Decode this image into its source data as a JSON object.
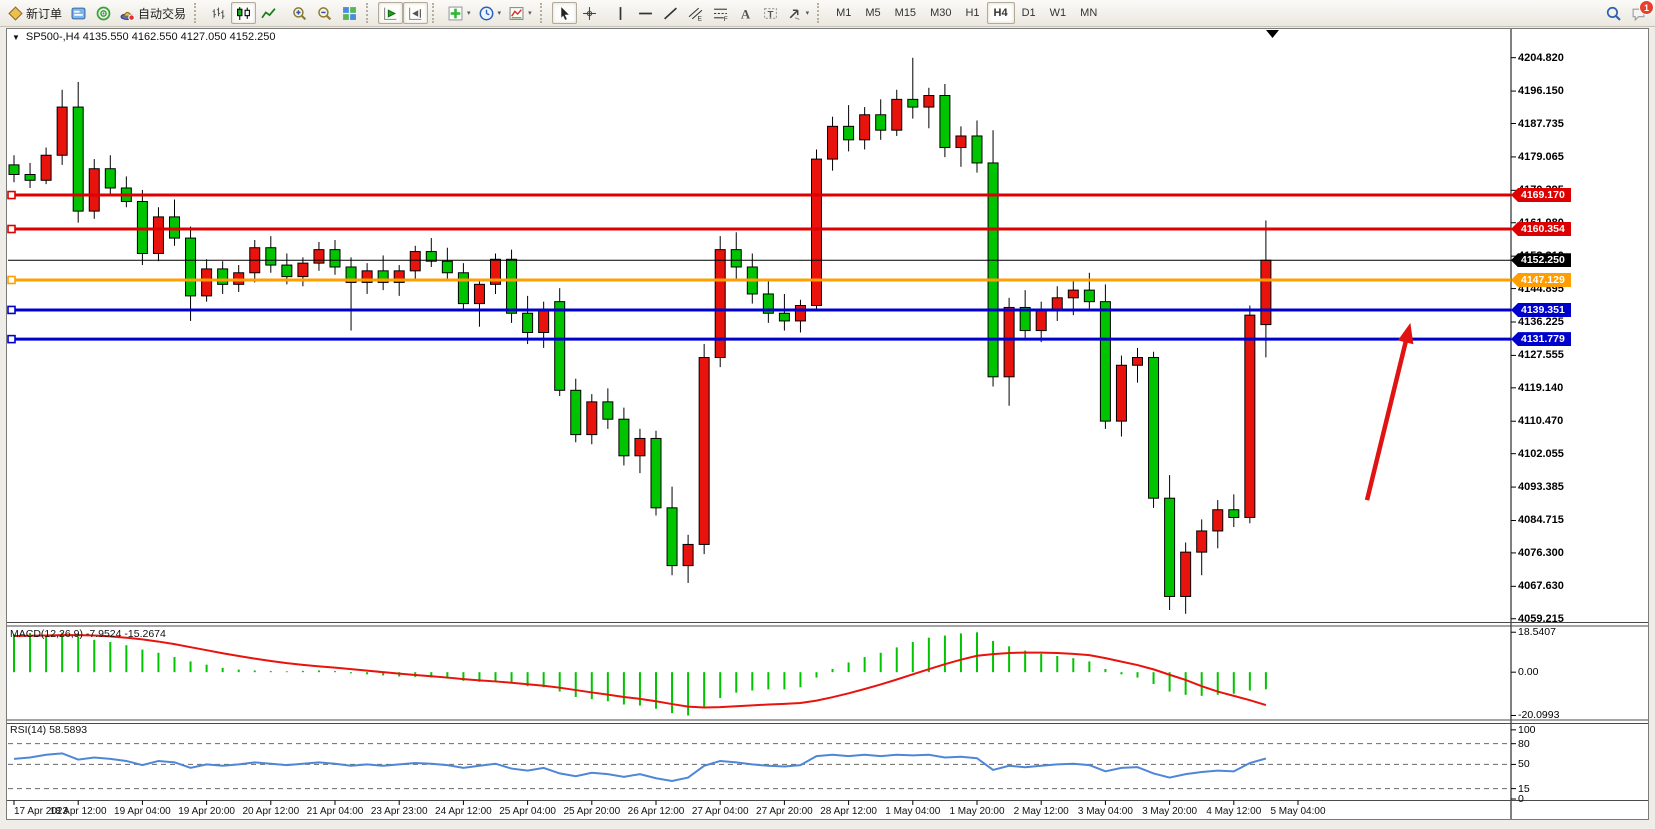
{
  "toolbar": {
    "new_order_label": "新订单",
    "auto_trading_label": "自动交易",
    "timeframes": [
      "M1",
      "M5",
      "M15",
      "M30",
      "H1",
      "H4",
      "D1",
      "W1",
      "MN"
    ],
    "active_timeframe": "H4",
    "chat_badge": "1",
    "items": [
      {
        "name": "new-order",
        "icon": "new-order-icon",
        "label": "新订单"
      },
      {
        "name": "charts-window",
        "icon": "terminal-icon"
      },
      {
        "name": "signals",
        "icon": "signals-icon"
      },
      {
        "name": "auto-trading",
        "icon": "autotrade-icon",
        "label": "自动交易"
      },
      {
        "type": "sep"
      },
      {
        "name": "bar-chart-mode",
        "icon": "bar-chart-icon"
      },
      {
        "name": "candle-chart-mode",
        "icon": "candle-chart-icon",
        "active": true
      },
      {
        "name": "line-chart-mode",
        "icon": "line-chart-icon"
      },
      {
        "type": "gap"
      },
      {
        "name": "zoom-in",
        "icon": "zoom-in-icon"
      },
      {
        "name": "zoom-out",
        "icon": "zoom-out-icon"
      },
      {
        "name": "tile-windows",
        "icon": "tile-windows-icon"
      },
      {
        "type": "sep"
      },
      {
        "name": "auto-scroll",
        "icon": "autoscroll-icon",
        "active": true
      },
      {
        "name": "chart-shift",
        "icon": "shift-icon",
        "active": true
      },
      {
        "type": "sep"
      },
      {
        "name": "indicators",
        "icon": "indicators-icon",
        "dropdown": true
      },
      {
        "name": "periods",
        "icon": "clock-icon",
        "dropdown": true
      },
      {
        "name": "templates",
        "icon": "template-icon",
        "dropdown": true
      },
      {
        "type": "sep"
      },
      {
        "name": "cursor",
        "icon": "cursor-icon",
        "active": true
      },
      {
        "name": "crosshair",
        "icon": "crosshair-icon"
      },
      {
        "type": "gap"
      },
      {
        "name": "vertical-line",
        "icon": "vline-icon"
      },
      {
        "name": "horizontal-line",
        "icon": "hline-icon"
      },
      {
        "name": "trendline",
        "icon": "trendline-icon"
      },
      {
        "name": "equidistant-channel",
        "icon": "channel-icon"
      },
      {
        "name": "fibonacci",
        "icon": "fibonacci-icon"
      },
      {
        "name": "text",
        "icon": "text-icon"
      },
      {
        "name": "text-label",
        "icon": "label-icon"
      },
      {
        "name": "arrows",
        "icon": "arrows-icon",
        "dropdown": true
      },
      {
        "type": "sep"
      },
      {
        "type": "timeframes"
      },
      {
        "type": "spacer"
      },
      {
        "name": "search",
        "icon": "search-icon"
      },
      {
        "name": "chat",
        "icon": "chat-icon",
        "badge": "1"
      }
    ]
  },
  "chart": {
    "header": "SP500-,H4  4135.550 4162.550 4127.050 4152.250",
    "symbol": "SP500-",
    "timeframe": "H4",
    "ohlc": {
      "open": "4135.550",
      "high": "4162.550",
      "low": "4127.050",
      "close": "4152.250"
    }
  },
  "macd": {
    "label": "MACD(12,26,9) -7.9524 -15.2674",
    "axis": [
      "18.5407",
      "0.00",
      "-20.0993"
    ]
  },
  "rsi": {
    "label": "RSI(14) 58.5893",
    "axis": [
      "100",
      "80",
      "50",
      "15",
      "0"
    ]
  },
  "price_axis_ticks": [
    "4204.820",
    "4196.150",
    "4187.735",
    "4179.065",
    "4170.395",
    "4161.980",
    "4153.310",
    "4144.895",
    "4136.225",
    "4127.555",
    "4119.140",
    "4110.470",
    "4102.055",
    "4093.385",
    "4084.715",
    "4076.300",
    "4067.630",
    "4059.215"
  ],
  "price_lines": [
    {
      "label": "4169.170",
      "price": 4169.17,
      "color": "#dd0000"
    },
    {
      "label": "4160.354",
      "price": 4160.354,
      "color": "#dd0000"
    },
    {
      "label": "4147.129",
      "price": 4147.129,
      "color": "#ff9e00"
    },
    {
      "label": "4139.351",
      "price": 4139.351,
      "color": "#0000cc"
    },
    {
      "label": "4131.779",
      "price": 4131.779,
      "color": "#0000cc"
    }
  ],
  "current_price": {
    "label": "4152.250",
    "price": 4152.25,
    "color": "#000000"
  },
  "time_axis": [
    "17 Apr 2023",
    "18 Apr 12:00",
    "19 Apr 04:00",
    "19 Apr 20:00",
    "20 Apr 12:00",
    "21 Apr 04:00",
    "23 Apr 23:00",
    "24 Apr 12:00",
    "25 Apr 04:00",
    "25 Apr 20:00",
    "26 Apr 12:00",
    "27 Apr 04:00",
    "27 Apr 20:00",
    "28 Apr 12:00",
    "1 May 04:00",
    "1 May 20:00",
    "2 May 12:00",
    "3 May 04:00",
    "3 May 20:00",
    "4 May 12:00",
    "5 May 04:00"
  ],
  "chart_data": {
    "type": "candlestick",
    "title": "SP500-,H4",
    "symbol": "SP500-",
    "timeframe": "H4",
    "bars_per_label": 4,
    "x_labels": [
      "17 Apr 2023",
      "18 Apr 12:00",
      "19 Apr 04:00",
      "19 Apr 20:00",
      "20 Apr 12:00",
      "21 Apr 04:00",
      "23 Apr 23:00",
      "24 Apr 12:00",
      "25 Apr 04:00",
      "25 Apr 20:00",
      "26 Apr 12:00",
      "27 Apr 04:00",
      "27 Apr 20:00",
      "28 Apr 12:00",
      "1 May 04:00",
      "1 May 20:00",
      "2 May 12:00",
      "3 May 04:00",
      "3 May 20:00",
      "4 May 12:00",
      "5 May 04:00"
    ],
    "up_color": "#e8130c",
    "down_color": "#00c400",
    "ylim": [
      4058.5,
      4212.0
    ],
    "y_ticks": [
      4204.82,
      4196.15,
      4187.735,
      4179.065,
      4170.395,
      4161.98,
      4153.31,
      4144.895,
      4136.225,
      4127.555,
      4119.14,
      4110.47,
      4102.055,
      4093.385,
      4084.715,
      4076.3,
      4067.63,
      4059.215
    ],
    "candles": [
      [
        4177.0,
        4179.5,
        4172.5,
        4174.5
      ],
      [
        4174.5,
        4177.5,
        4171.0,
        4173.0
      ],
      [
        4173.0,
        4181.5,
        4172.0,
        4179.5
      ],
      [
        4179.5,
        4196.5,
        4177.0,
        4192.0
      ],
      [
        4192.0,
        4198.5,
        4162.0,
        4165.0
      ],
      [
        4165.0,
        4178.5,
        4163.0,
        4176.0
      ],
      [
        4176.0,
        4179.5,
        4169.0,
        4171.0
      ],
      [
        4171.0,
        4174.0,
        4166.0,
        4167.5
      ],
      [
        4167.5,
        4170.5,
        4151.0,
        4154.0
      ],
      [
        4154.0,
        4166.0,
        4152.0,
        4163.5
      ],
      [
        4163.5,
        4168.0,
        4156.0,
        4158.0
      ],
      [
        4158.0,
        4161.0,
        4136.5,
        4143.0
      ],
      [
        4143.0,
        4152.5,
        4141.5,
        4150.0
      ],
      [
        4150.0,
        4152.0,
        4143.5,
        4146.0
      ],
      [
        4146.0,
        4151.0,
        4144.0,
        4149.0
      ],
      [
        4149.0,
        4157.5,
        4146.5,
        4155.5
      ],
      [
        4155.5,
        4158.5,
        4149.0,
        4151.0
      ],
      [
        4151.0,
        4154.0,
        4146.0,
        4148.0
      ],
      [
        4148.0,
        4153.0,
        4145.5,
        4151.5
      ],
      [
        4151.5,
        4157.0,
        4149.5,
        4155.0
      ],
      [
        4155.0,
        4157.5,
        4148.5,
        4150.5
      ],
      [
        4150.5,
        4153.0,
        4134.0,
        4146.5
      ],
      [
        4146.5,
        4151.5,
        4143.5,
        4149.5
      ],
      [
        4149.5,
        4153.5,
        4144.5,
        4146.5
      ],
      [
        4146.5,
        4151.0,
        4143.0,
        4149.5
      ],
      [
        4149.5,
        4156.0,
        4147.0,
        4154.5
      ],
      [
        4154.5,
        4158.0,
        4150.5,
        4152.0
      ],
      [
        4152.0,
        4155.5,
        4147.0,
        4149.0
      ],
      [
        4149.0,
        4151.5,
        4139.0,
        4141.0
      ],
      [
        4141.0,
        4147.5,
        4135.0,
        4146.0
      ],
      [
        4146.0,
        4154.0,
        4143.5,
        4152.5
      ],
      [
        4152.5,
        4155.0,
        4136.0,
        4138.5
      ],
      [
        4138.5,
        4143.0,
        4130.5,
        4133.5
      ],
      [
        4133.5,
        4141.5,
        4129.5,
        4139.5
      ],
      [
        4141.5,
        4145.0,
        4117.0,
        4118.5
      ],
      [
        4118.5,
        4121.5,
        4105.0,
        4107.0
      ],
      [
        4107.0,
        4117.5,
        4104.5,
        4115.5
      ],
      [
        4115.5,
        4119.0,
        4108.5,
        4111.0
      ],
      [
        4111.0,
        4114.0,
        4099.0,
        4101.5
      ],
      [
        4101.5,
        4108.5,
        4097.0,
        4106.0
      ],
      [
        4106.0,
        4108.0,
        4086.0,
        4088.0
      ],
      [
        4088.0,
        4093.5,
        4070.5,
        4073.0
      ],
      [
        4073.0,
        4081.0,
        4068.5,
        4078.5
      ],
      [
        4078.5,
        4130.5,
        4076.0,
        4127.0
      ],
      [
        4127.0,
        4158.5,
        4124.5,
        4155.0
      ],
      [
        4155.0,
        4159.5,
        4147.5,
        4150.5
      ],
      [
        4150.5,
        4154.0,
        4141.0,
        4143.5
      ],
      [
        4143.5,
        4147.0,
        4136.0,
        4138.5
      ],
      [
        4138.5,
        4143.5,
        4134.0,
        4136.5
      ],
      [
        4136.5,
        4142.0,
        4133.5,
        4140.5
      ],
      [
        4140.5,
        4181.0,
        4139.0,
        4178.5
      ],
      [
        4178.5,
        4189.5,
        4175.5,
        4187.0
      ],
      [
        4187.0,
        4192.5,
        4180.5,
        4183.5
      ],
      [
        4183.5,
        4192.0,
        4181.0,
        4190.0
      ],
      [
        4190.0,
        4194.0,
        4183.5,
        4186.0
      ],
      [
        4186.0,
        4196.5,
        4184.5,
        4194.0
      ],
      [
        4194.0,
        4204.8,
        4189.0,
        4192.0
      ],
      [
        4192.0,
        4197.0,
        4186.5,
        4195.0
      ],
      [
        4195.0,
        4198.0,
        4179.0,
        4181.5
      ],
      [
        4181.5,
        4187.0,
        4176.5,
        4184.5
      ],
      [
        4184.5,
        4188.5,
        4175.0,
        4177.5
      ],
      [
        4177.5,
        4186.0,
        4119.5,
        4122.0
      ],
      [
        4122.0,
        4142.5,
        4114.5,
        4140.0
      ],
      [
        4140.0,
        4144.5,
        4131.5,
        4134.0
      ],
      [
        4134.0,
        4141.5,
        4131.0,
        4139.5
      ],
      [
        4139.5,
        4145.5,
        4136.5,
        4142.5
      ],
      [
        4142.5,
        4147.0,
        4138.0,
        4144.5
      ],
      [
        4144.5,
        4149.0,
        4139.5,
        4141.5
      ],
      [
        4141.5,
        4146.0,
        4108.5,
        4110.5
      ],
      [
        4110.5,
        4127.5,
        4106.5,
        4125.0
      ],
      [
        4125.0,
        4129.5,
        4120.5,
        4127.0
      ],
      [
        4127.0,
        4128.5,
        4088.0,
        4090.5
      ],
      [
        4090.5,
        4096.5,
        4061.5,
        4065.0
      ],
      [
        4065.0,
        4079.0,
        4060.5,
        4076.5
      ],
      [
        4076.5,
        4085.0,
        4070.5,
        4082.0
      ],
      [
        4082.0,
        4090.0,
        4077.5,
        4087.5
      ],
      [
        4087.5,
        4091.5,
        4083.0,
        4085.5
      ],
      [
        4085.5,
        4140.5,
        4084.0,
        4138.0
      ],
      [
        4135.55,
        4162.55,
        4127.05,
        4152.25
      ]
    ],
    "hlines": [
      {
        "label": "4169.170",
        "price": 4169.17,
        "color": "#dd0000",
        "width": 3
      },
      {
        "label": "4160.354",
        "price": 4160.354,
        "color": "#dd0000",
        "width": 3
      },
      {
        "label": "4152.250",
        "price": 4152.25,
        "color": "#000000",
        "width": 1
      },
      {
        "label": "4147.129",
        "price": 4147.129,
        "color": "#ff9e00",
        "width": 3
      },
      {
        "label": "4139.351",
        "price": 4139.351,
        "color": "#0000cc",
        "width": 3
      },
      {
        "label": "4131.779",
        "price": 4131.779,
        "color": "#0000cc",
        "width": 3
      }
    ],
    "indicators": [
      {
        "name": "MACD",
        "params": "12,26,9",
        "main_value": -7.9524,
        "signal_value": -15.2674,
        "ylim": [
          -21.5,
          20.5
        ],
        "y_ticks": [
          18.5407,
          0.0,
          -20.0993
        ],
        "histogram_color": "#00c400",
        "signal_color": "#e8130c",
        "histogram": [
          17.5,
          18.2,
          17.0,
          18.4,
          16.5,
          15.0,
          14.0,
          12.5,
          10.5,
          9.0,
          7.0,
          5.0,
          3.5,
          2.0,
          1.2,
          0.8,
          0.5,
          0.4,
          0.6,
          0.8,
          0.5,
          -0.5,
          -1.0,
          -1.5,
          -2.0,
          -2.2,
          -2.5,
          -3.0,
          -4.0,
          -4.5,
          -4.0,
          -5.0,
          -6.5,
          -7.0,
          -9.0,
          -11.5,
          -12.5,
          -13.5,
          -15.0,
          -15.5,
          -17.0,
          -19.0,
          -20.1,
          -16.5,
          -12.0,
          -9.5,
          -8.5,
          -8.0,
          -8.0,
          -7.0,
          -2.5,
          1.5,
          4.5,
          7.0,
          9.0,
          11.5,
          14.0,
          16.0,
          17.0,
          18.0,
          18.5,
          14.5,
          12.0,
          10.0,
          8.5,
          7.5,
          6.5,
          5.0,
          1.5,
          -1.0,
          -2.5,
          -5.5,
          -9.0,
          -10.5,
          -11.0,
          -10.5,
          -10.0,
          -8.5,
          -7.95
        ],
        "signal": [
          16.8,
          16.9,
          17.0,
          17.2,
          17.2,
          17.0,
          16.6,
          16.0,
          15.2,
          14.2,
          13.0,
          11.6,
          10.2,
          8.8,
          7.5,
          6.3,
          5.2,
          4.2,
          3.4,
          2.7,
          2.1,
          1.4,
          0.7,
          0.0,
          -0.7,
          -1.3,
          -1.9,
          -2.5,
          -3.2,
          -3.8,
          -4.3,
          -4.9,
          -5.6,
          -6.3,
          -7.2,
          -8.3,
          -9.4,
          -10.4,
          -11.5,
          -12.4,
          -13.5,
          -14.8,
          -16.0,
          -16.4,
          -16.2,
          -15.8,
          -15.4,
          -15.0,
          -14.7,
          -14.3,
          -13.2,
          -11.6,
          -9.8,
          -7.8,
          -5.7,
          -3.4,
          -1.0,
          1.4,
          3.7,
          5.8,
          7.6,
          8.4,
          8.9,
          9.1,
          9.1,
          8.9,
          8.5,
          7.9,
          6.5,
          4.9,
          3.3,
          1.3,
          -1.2,
          -3.6,
          -6.5,
          -9.0,
          -11.0,
          -13.0,
          -15.27
        ]
      },
      {
        "name": "RSI",
        "params": "14",
        "value": 58.5893,
        "ylim": [
          0,
          107
        ],
        "levels": [
          80,
          50,
          15
        ],
        "y_ticks": [
          100,
          80,
          50,
          15,
          0
        ],
        "color": "#4f86d8",
        "values": [
          58,
          60,
          64,
          66,
          57,
          60,
          58,
          55,
          49,
          55,
          53,
          45,
          50,
          48,
          50,
          53,
          51,
          49,
          51,
          53,
          51,
          48,
          50,
          48,
          50,
          52,
          51,
          49,
          45,
          48,
          51,
          44,
          41,
          45,
          37,
          33,
          38,
          36,
          32,
          36,
          30,
          26,
          31,
          48,
          55,
          53,
          50,
          48,
          47,
          49,
          62,
          64,
          62,
          64,
          62,
          64,
          63,
          64,
          60,
          61,
          59,
          42,
          48,
          46,
          48,
          50,
          51,
          49,
          40,
          45,
          46,
          37,
          31,
          36,
          39,
          41,
          40,
          52,
          58.59
        ]
      }
    ],
    "annotation_arrow": {
      "from_bar": 84.3,
      "from_price": 4090,
      "to_bar": 87.0,
      "to_price": 4136,
      "color": "#e01212"
    }
  }
}
